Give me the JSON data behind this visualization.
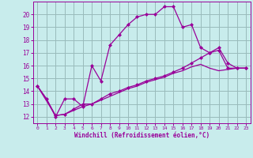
{
  "xlabel": "Windchill (Refroidissement éolien,°C)",
  "background_color": "#c8ecec",
  "line_color": "#990099",
  "grid_color": "#99bbbb",
  "xlim": [
    -0.5,
    23.5
  ],
  "ylim": [
    11.5,
    21.0
  ],
  "x_ticks": [
    0,
    1,
    2,
    3,
    4,
    5,
    6,
    7,
    8,
    9,
    10,
    11,
    12,
    13,
    14,
    15,
    16,
    17,
    18,
    19,
    20,
    21,
    22,
    23
  ],
  "y_ticks": [
    12,
    13,
    14,
    15,
    16,
    17,
    18,
    19,
    20
  ],
  "curve1_x": [
    0,
    1,
    2,
    3,
    4,
    5,
    6,
    7,
    8,
    9,
    10,
    11,
    12,
    13,
    14,
    15,
    16,
    17,
    18,
    19,
    20,
    21,
    22,
    23
  ],
  "curve1_y": [
    14.4,
    13.4,
    12.0,
    13.4,
    13.4,
    12.8,
    16.0,
    14.8,
    17.6,
    18.4,
    19.2,
    19.8,
    20.0,
    20.0,
    20.6,
    20.6,
    19.0,
    19.2,
    17.4,
    17.0,
    17.4,
    16.2,
    15.8,
    15.8
  ],
  "curve2_x": [
    0,
    2,
    3,
    4,
    5,
    6,
    7,
    8,
    9,
    10,
    11,
    12,
    13,
    14,
    15,
    16,
    17,
    18,
    19,
    20,
    21,
    22,
    23
  ],
  "curve2_y": [
    14.4,
    12.1,
    12.2,
    12.6,
    13.0,
    13.0,
    13.4,
    13.8,
    14.0,
    14.3,
    14.5,
    14.8,
    15.0,
    15.2,
    15.5,
    15.8,
    16.2,
    16.6,
    17.0,
    17.2,
    15.8,
    15.8,
    15.8
  ],
  "curve3_x": [
    0,
    1,
    2,
    3,
    4,
    5,
    6,
    7,
    8,
    9,
    10,
    11,
    12,
    13,
    14,
    15,
    16,
    17,
    18,
    19,
    20,
    21,
    22,
    23
  ],
  "curve3_y": [
    14.4,
    13.4,
    12.1,
    12.2,
    12.5,
    12.8,
    13.0,
    13.3,
    13.6,
    13.9,
    14.2,
    14.4,
    14.7,
    14.9,
    15.1,
    15.4,
    15.6,
    15.9,
    16.1,
    15.8,
    15.6,
    15.7,
    15.8,
    15.8
  ],
  "marker": "D",
  "marker_size": 2,
  "line_width": 0.9
}
